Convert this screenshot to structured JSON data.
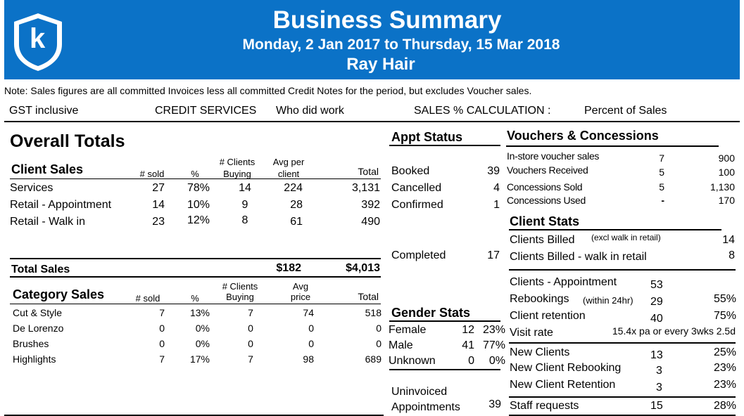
{
  "header": {
    "title": "Business Summary",
    "date_range": "Monday, 2 Jan 2017 to  Thursday, 15 Mar 2018",
    "staff": "Ray Hair",
    "logo_letter": "k",
    "color": "#0b72c7"
  },
  "note": "Note: Sales figures are all committed Invoices less all committed Credit Notes for the period, but excludes Voucher sales.",
  "settings": {
    "gst": "GST inclusive",
    "credit_services_label": "CREDIT SERVICES",
    "credit_services_value": "Who did work",
    "sales_calc_label": "SALES % CALCULATION :",
    "sales_calc_value": "Percent of Sales"
  },
  "overall": {
    "title": "Overall Totals",
    "client_sales": {
      "title": "Client Sales",
      "headers": {
        "sold": "#  sold",
        "pct": "%",
        "clients_1": "# Clients",
        "clients_2": "Buying",
        "avg_1": "Avg  per",
        "avg_2": "client",
        "total": "Total"
      },
      "rows": [
        {
          "label": "Services",
          "sold": "27",
          "pct": "78%",
          "clients": "14",
          "avg": "224",
          "total": "3,131"
        },
        {
          "label": "Retail - Appointment",
          "sold": "14",
          "pct": "10%",
          "clients": "9",
          "avg": "28",
          "total": "392"
        },
        {
          "label": "Retail - Walk in",
          "sold": "23",
          "pct": "12%",
          "clients": "8",
          "avg": "61",
          "total": "490"
        }
      ],
      "total_label": "Total Sales",
      "total_avg": "$182",
      "total_value": "$4,013"
    },
    "category_sales": {
      "title": "Category Sales",
      "headers": {
        "sold": "#  sold",
        "pct": "%",
        "clients_1": "# Clients",
        "clients_2": "Buying",
        "avg_1": "Avg",
        "avg_2": "price",
        "total": "Total"
      },
      "rows": [
        {
          "label": "Cut & Style",
          "sold": "7",
          "pct": "13%",
          "clients": "7",
          "avg": "74",
          "total": "518"
        },
        {
          "label": "De Lorenzo",
          "sold": "0",
          "pct": "0%",
          "clients": "0",
          "avg": "0",
          "total": "0"
        },
        {
          "label": "Brushes",
          "sold": "0",
          "pct": "0%",
          "clients": "0",
          "avg": "0",
          "total": "0"
        },
        {
          "label": "Highlights",
          "sold": "7",
          "pct": "17%",
          "clients": "7",
          "avg": "98",
          "total": "689"
        }
      ]
    }
  },
  "appt_status": {
    "title": "Appt Status",
    "booked_label": "Booked",
    "booked": "39",
    "cancelled_label": "Cancelled",
    "cancelled": "4",
    "confirmed_label": "Confirmed",
    "confirmed": "1",
    "completed_label": "Completed",
    "completed": "17"
  },
  "gender": {
    "title": "Gender Stats",
    "rows": [
      {
        "label": "Female",
        "count": "12",
        "pct": "23%"
      },
      {
        "label": "Male",
        "count": "41",
        "pct": "77%"
      },
      {
        "label": "Unknown",
        "count": "0",
        "pct": "0%"
      }
    ],
    "uninvoiced_1": "Uninvoiced",
    "uninvoiced_2": "Appointments",
    "uninvoiced": "39"
  },
  "vouchers": {
    "title": "Vouchers & Concessions",
    "rows": [
      {
        "label": "In-store voucher sales",
        "count": "7",
        "value": "900"
      },
      {
        "label": "Vouchers Received",
        "count": "5",
        "value": "100"
      },
      {
        "label": "Concessions Sold",
        "count": "5",
        "value": "1,130"
      },
      {
        "label": "Concessions Used",
        "count": "-",
        "value": "170"
      }
    ]
  },
  "client_stats": {
    "title": "Client Stats",
    "billed_label": "Clients Billed",
    "billed_note": "(excl walk in retail)",
    "billed": "14",
    "billed_walkin_label": "Clients Billed - walk in retail",
    "billed_walkin": "8",
    "appointment_label": "Clients - Appointment",
    "appointment": "53",
    "rebookings_label": "Rebookings",
    "rebookings_note": "(within 24hr)",
    "rebookings": "29",
    "rebookings_pct": "55%",
    "retention_label": "Client retention",
    "retention": "40",
    "retention_pct": "75%",
    "visit_label": "Visit rate",
    "visit": "15.4x pa or every 3wks 2.5d",
    "new_label": "New Clients",
    "new": "13",
    "new_pct": "25%",
    "new_rebook_label": "New Client Rebooking",
    "new_rebook": "3",
    "new_rebook_pct": "23%",
    "new_ret_label": "New Client Retention",
    "new_ret": "3",
    "new_ret_pct": "23%",
    "staff_req_label": "Staff requests",
    "staff_req": "15",
    "staff_req_pct": "28%"
  }
}
